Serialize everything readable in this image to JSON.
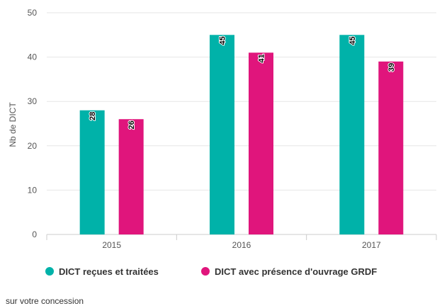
{
  "chart_data": {
    "type": "bar",
    "categories": [
      "2015",
      "2016",
      "2017"
    ],
    "series": [
      {
        "name": "DICT reçues et traitées",
        "values": [
          28,
          45,
          45
        ],
        "color": "#00b2a9"
      },
      {
        "name": "DICT avec présence d'ouvrage GRDF",
        "values": [
          26,
          41,
          39
        ],
        "color": "#e0157c"
      }
    ],
    "ylabel": "Nb de DICT",
    "ylim": [
      0,
      50
    ],
    "yticks": [
      0,
      10,
      20,
      30,
      40,
      50
    ],
    "grid": true,
    "legend": "bottom"
  },
  "caption": "sur votre concession"
}
